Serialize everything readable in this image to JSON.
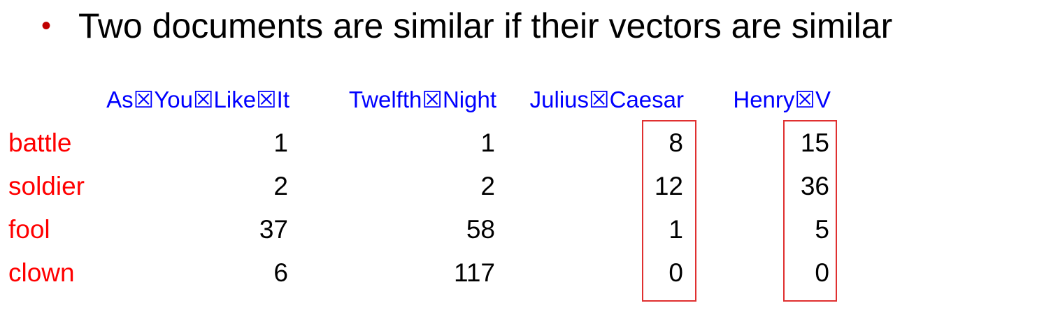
{
  "bullet": {
    "text": "Two documents are similar if their vectors are similar"
  },
  "table": {
    "columns": [
      "As☒You☒Like☒It",
      "Twelfth☒Night",
      "Julius☒Caesar",
      "Henry☒V"
    ],
    "rows": [
      {
        "term": "battle",
        "values": [
          "1",
          "1",
          "8",
          "15"
        ]
      },
      {
        "term": "soldier",
        "values": [
          "2",
          "2",
          "12",
          "36"
        ]
      },
      {
        "term": "fool",
        "values": [
          "37",
          "58",
          "1",
          "5"
        ]
      },
      {
        "term": "clown",
        "values": [
          "6",
          "117",
          "0",
          "0"
        ]
      }
    ],
    "highlighted_columns": [
      "Julius☒Caesar",
      "Henry☒V"
    ]
  },
  "colors": {
    "header": "#0000ff",
    "term": "#ff0000",
    "highlight_border": "#e03030",
    "bullet": "#c00000"
  }
}
